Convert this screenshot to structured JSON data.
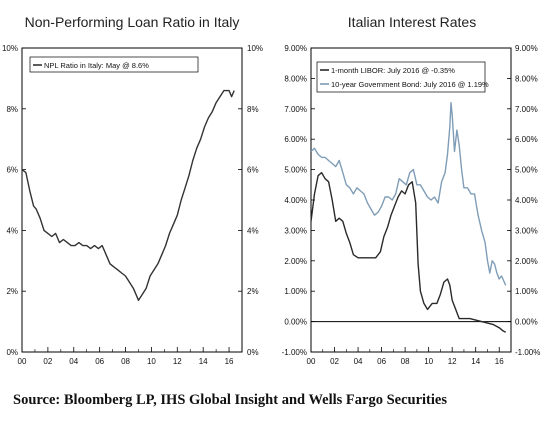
{
  "colors": {
    "npl": "#333333",
    "libor": "#2a2a2a",
    "govt": "#7f9db7",
    "frame": "#000000"
  },
  "chart_data": [
    {
      "type": "line",
      "title": "Non-Performing Loan Ratio in Italy",
      "x_tick_labels": [
        "00",
        "02",
        "04",
        "06",
        "08",
        "10",
        "12",
        "14",
        "16"
      ],
      "y_tick_labels_left": [
        "0%",
        "2%",
        "4%",
        "6%",
        "8%",
        "10%"
      ],
      "y_tick_labels_right": [
        "0%",
        "2%",
        "4%",
        "6%",
        "8%",
        "10%"
      ],
      "xlim": [
        2000,
        2017
      ],
      "ylim": [
        0,
        10
      ],
      "grid": false,
      "legend_position": "top-left",
      "series": [
        {
          "name": "NPL Ratio in Italy: May @ 8.6%",
          "x": [
            2000.0,
            2000.3,
            2000.6,
            2000.9,
            2001.1,
            2001.4,
            2001.7,
            2002.0,
            2002.3,
            2002.6,
            2002.9,
            2003.2,
            2003.5,
            2003.8,
            2004.1,
            2004.4,
            2004.7,
            2005.0,
            2005.3,
            2005.6,
            2005.9,
            2006.2,
            2006.5,
            2006.8,
            2007.1,
            2007.4,
            2007.7,
            2008.0,
            2008.3,
            2008.6,
            2008.8,
            2009.0,
            2009.3,
            2009.6,
            2009.9,
            2010.2,
            2010.5,
            2010.8,
            2011.1,
            2011.4,
            2011.7,
            2012.0,
            2012.3,
            2012.6,
            2012.9,
            2013.2,
            2013.5,
            2013.8,
            2014.1,
            2014.4,
            2014.7,
            2015.0,
            2015.3,
            2015.6,
            2015.8,
            2016.0,
            2016.2,
            2016.4
          ],
          "values": [
            6.0,
            5.9,
            5.3,
            4.8,
            4.7,
            4.4,
            4.0,
            3.9,
            3.8,
            3.9,
            3.6,
            3.7,
            3.6,
            3.5,
            3.5,
            3.6,
            3.5,
            3.5,
            3.4,
            3.5,
            3.4,
            3.5,
            3.2,
            2.9,
            2.8,
            2.7,
            2.6,
            2.5,
            2.3,
            2.1,
            1.9,
            1.7,
            1.9,
            2.1,
            2.5,
            2.7,
            2.9,
            3.2,
            3.5,
            3.9,
            4.2,
            4.5,
            5.0,
            5.4,
            5.8,
            6.3,
            6.7,
            7.0,
            7.4,
            7.7,
            7.9,
            8.2,
            8.4,
            8.6,
            8.6,
            8.6,
            8.4,
            8.6
          ]
        }
      ]
    },
    {
      "type": "line",
      "title": "Italian Interest Rates",
      "x_tick_labels": [
        "00",
        "02",
        "04",
        "06",
        "08",
        "10",
        "12",
        "14",
        "16"
      ],
      "y_tick_labels_left": [
        "-1.00%",
        "0.00%",
        "1.00%",
        "2.00%",
        "3.00%",
        "4.00%",
        "5.00%",
        "6.00%",
        "7.00%",
        "8.00%",
        "9.00%"
      ],
      "y_tick_labels_right": [
        "-1.00%",
        "0.00%",
        "1.00%",
        "2.00%",
        "3.00%",
        "4.00%",
        "5.00%",
        "6.00%",
        "7.00%",
        "8.00%",
        "9.00%"
      ],
      "xlim": [
        2000,
        2017
      ],
      "ylim": [
        -1,
        9
      ],
      "grid": false,
      "legend_position": "top-left",
      "series": [
        {
          "name": "1-month LIBOR: July 2016 @ -0.35%",
          "x": [
            2000.0,
            2000.3,
            2000.6,
            2000.9,
            2001.2,
            2001.5,
            2001.8,
            2002.1,
            2002.4,
            2002.7,
            2003.0,
            2003.3,
            2003.6,
            2004.0,
            2004.5,
            2005.0,
            2005.5,
            2005.9,
            2006.2,
            2006.5,
            2006.8,
            2007.1,
            2007.4,
            2007.7,
            2008.0,
            2008.3,
            2008.6,
            2008.9,
            2009.1,
            2009.3,
            2009.6,
            2009.9,
            2010.3,
            2010.7,
            2011.0,
            2011.3,
            2011.6,
            2011.8,
            2012.0,
            2012.3,
            2012.6,
            2013.0,
            2013.5,
            2014.0,
            2014.5,
            2015.0,
            2015.5,
            2016.0,
            2016.3,
            2016.55
          ],
          "values": [
            3.3,
            4.2,
            4.8,
            4.9,
            4.7,
            4.6,
            4.0,
            3.3,
            3.4,
            3.3,
            2.9,
            2.6,
            2.2,
            2.1,
            2.1,
            2.1,
            2.1,
            2.3,
            2.8,
            3.1,
            3.5,
            3.8,
            4.1,
            4.3,
            4.2,
            4.5,
            4.6,
            3.9,
            1.9,
            1.0,
            0.6,
            0.4,
            0.6,
            0.6,
            0.9,
            1.3,
            1.4,
            1.2,
            0.7,
            0.4,
            0.1,
            0.1,
            0.1,
            0.05,
            0.0,
            -0.05,
            -0.1,
            -0.2,
            -0.3,
            -0.35
          ]
        },
        {
          "name": "10-year Government Bond: July 2016 @ 1.19%",
          "x": [
            2000.0,
            2000.3,
            2000.6,
            2000.9,
            2001.2,
            2001.5,
            2001.8,
            2002.1,
            2002.4,
            2002.7,
            2003.0,
            2003.3,
            2003.6,
            2003.9,
            2004.2,
            2004.5,
            2004.8,
            2005.1,
            2005.4,
            2005.7,
            2006.0,
            2006.3,
            2006.6,
            2006.9,
            2007.2,
            2007.5,
            2007.8,
            2008.1,
            2008.4,
            2008.7,
            2009.0,
            2009.3,
            2009.6,
            2009.9,
            2010.2,
            2010.5,
            2010.8,
            2011.1,
            2011.4,
            2011.6,
            2011.8,
            2011.9,
            2012.0,
            2012.2,
            2012.4,
            2012.6,
            2012.8,
            2013.0,
            2013.3,
            2013.6,
            2013.9,
            2014.2,
            2014.5,
            2014.8,
            2015.0,
            2015.2,
            2015.4,
            2015.6,
            2015.8,
            2016.0,
            2016.2,
            2016.55
          ],
          "values": [
            5.6,
            5.7,
            5.5,
            5.4,
            5.4,
            5.3,
            5.2,
            5.1,
            5.3,
            4.9,
            4.5,
            4.4,
            4.2,
            4.4,
            4.3,
            4.2,
            3.9,
            3.7,
            3.5,
            3.6,
            3.8,
            4.1,
            4.1,
            4.0,
            4.2,
            4.7,
            4.6,
            4.5,
            4.9,
            5.0,
            4.5,
            4.5,
            4.3,
            4.1,
            4.0,
            4.1,
            3.9,
            4.6,
            4.9,
            5.5,
            6.4,
            7.2,
            6.8,
            5.6,
            6.3,
            5.8,
            5.0,
            4.4,
            4.4,
            4.2,
            4.2,
            3.5,
            3.0,
            2.6,
            2.0,
            1.6,
            2.0,
            1.9,
            1.6,
            1.4,
            1.5,
            1.19
          ]
        }
      ]
    }
  ],
  "source_text": "Source:  Bloomberg LP, IHS Global Insight and Wells Fargo Securities"
}
